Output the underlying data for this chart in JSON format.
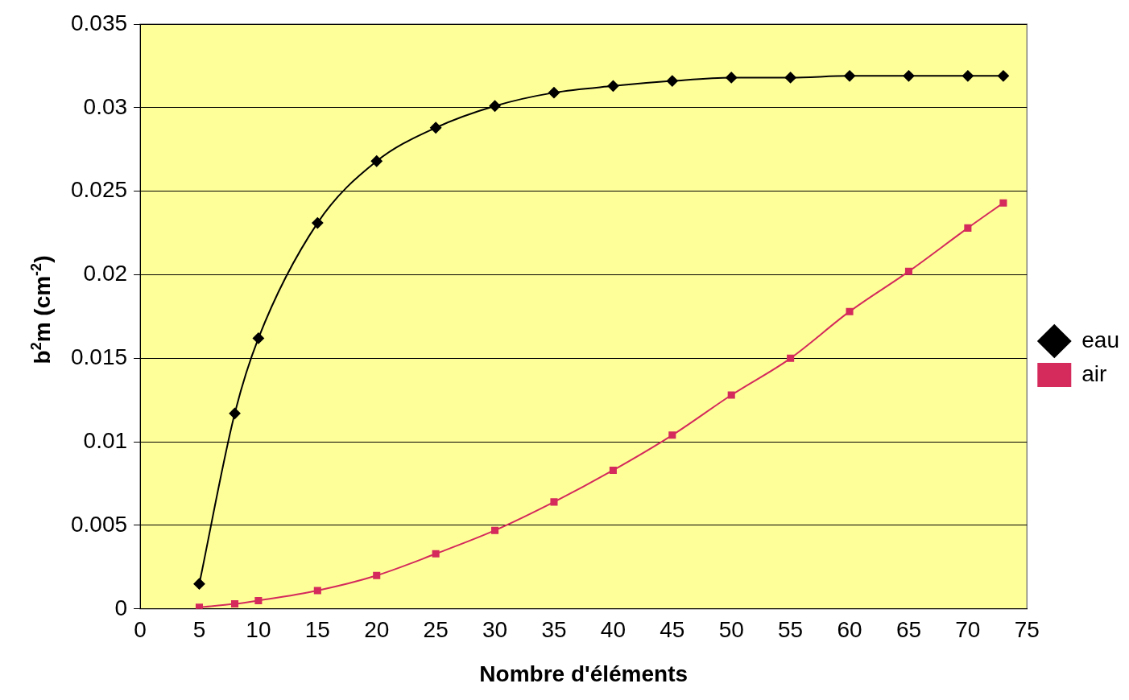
{
  "chart_data": {
    "type": "line",
    "xlabel": "Nombre d'éléments",
    "ylabel": "b$^{2}$m (cm$^{-2}$)",
    "xlim": [
      0,
      75
    ],
    "xticks": [
      0,
      5,
      10,
      15,
      20,
      25,
      30,
      35,
      40,
      45,
      50,
      55,
      60,
      65,
      70,
      75
    ],
    "ylim": [
      0,
      0.035
    ],
    "yticks": [
      0,
      0.005,
      0.01,
      0.015,
      0.02,
      0.025,
      0.03,
      0.035
    ],
    "grid": "y",
    "legend": "right",
    "series": [
      {
        "name": "eau",
        "color": "#000000",
        "marker": "diamond",
        "x": [
          5,
          8,
          10,
          15,
          20,
          25,
          30,
          35,
          40,
          45,
          50,
          55,
          60,
          65,
          70,
          73
        ],
        "values": [
          0.0015,
          0.0117,
          0.0162,
          0.0231,
          0.0268,
          0.0288,
          0.0301,
          0.0309,
          0.0313,
          0.0316,
          0.0318,
          0.0318,
          0.0319,
          0.0319,
          0.0319,
          0.0319
        ]
      },
      {
        "name": "air",
        "color": "#d42a5c",
        "marker": "square",
        "x": [
          5,
          8,
          10,
          15,
          20,
          25,
          30,
          35,
          40,
          45,
          50,
          55,
          60,
          65,
          70,
          73
        ],
        "values": [
          0.0001,
          0.0003,
          0.0005,
          0.0011,
          0.002,
          0.0033,
          0.0047,
          0.0064,
          0.0083,
          0.0104,
          0.0128,
          0.015,
          0.0178,
          0.0202,
          0.0228,
          0.0243
        ]
      }
    ]
  }
}
